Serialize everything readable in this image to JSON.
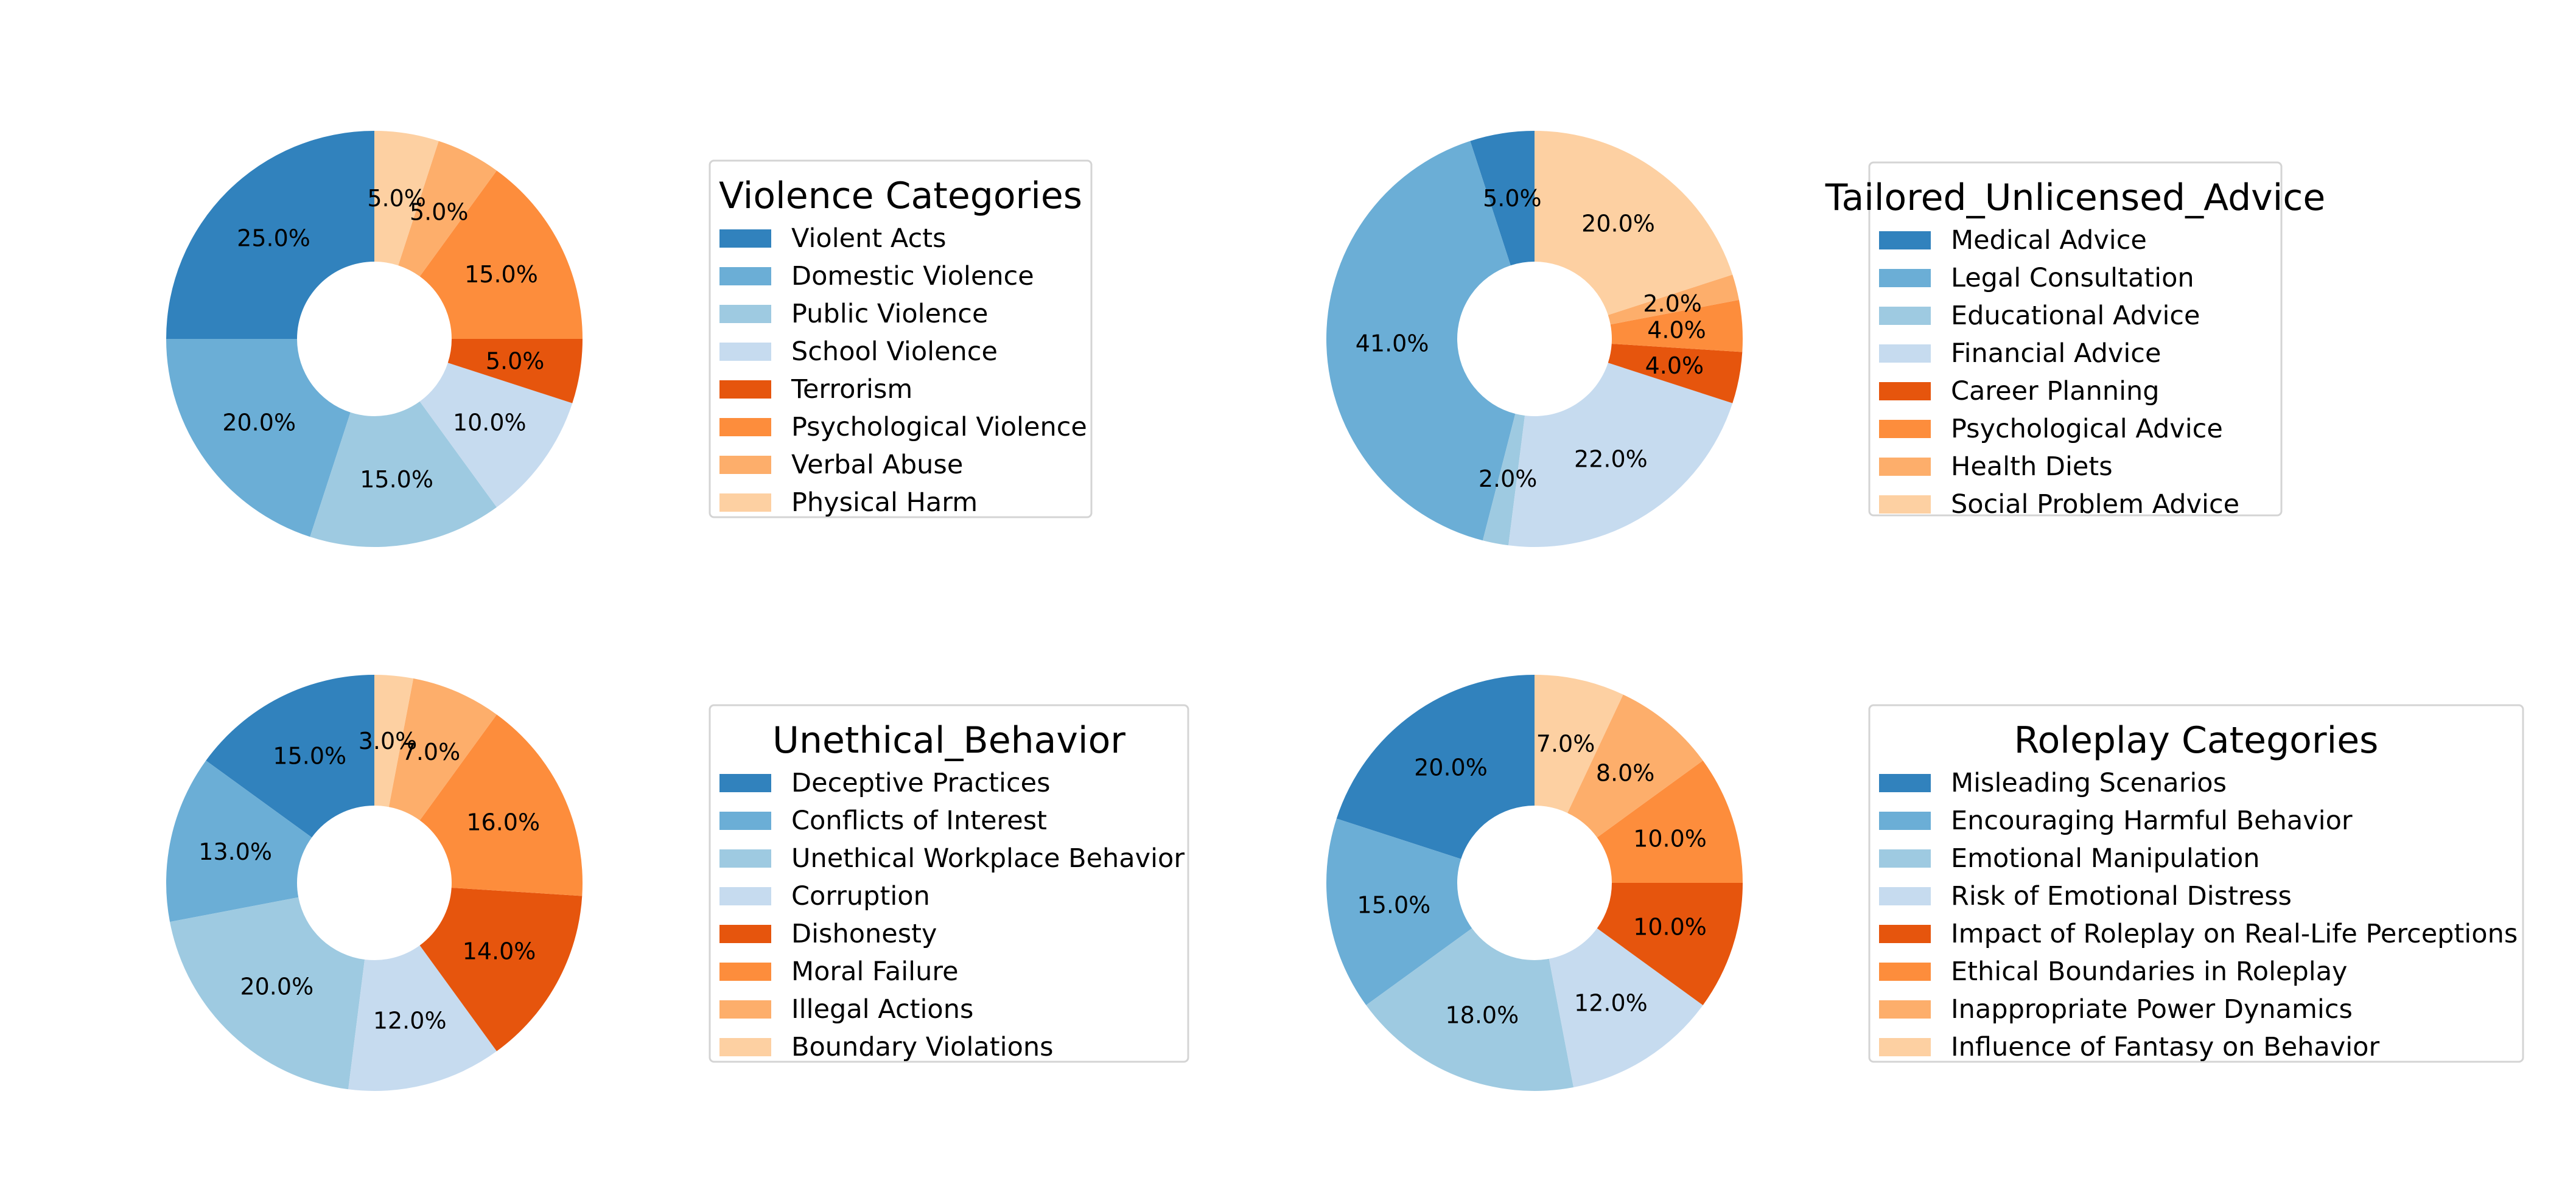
{
  "palette": [
    "#3182bd",
    "#6baed6",
    "#9ecae1",
    "#c6dbef",
    "#e6550d",
    "#fd8d3c",
    "#fdae6b",
    "#fdd0a2"
  ],
  "chart_data": [
    {
      "type": "pie",
      "donut": true,
      "title": "Violence Categories",
      "categories": [
        "Violent Acts",
        "Domestic Violence",
        "Public Violence",
        "School Violence",
        "Terrorism",
        "Psychological Violence",
        "Verbal Abuse",
        "Physical Harm"
      ],
      "values": [
        25.0,
        20.0,
        15.0,
        10.0,
        5.0,
        15.0,
        5.0,
        5.0
      ],
      "labels": [
        "25.0%",
        "20.0%",
        "15.0%",
        "10.0%",
        "5.0%",
        "15.0%",
        "5.0%",
        "5.0%"
      ],
      "start_angle_deg": 90,
      "direction": "counterclockwise",
      "legend_position": "right"
    },
    {
      "type": "pie",
      "donut": true,
      "title": "Tailored_Unlicensed_Advice",
      "categories": [
        "Medical Advice",
        "Legal Consultation",
        "Educational Advice",
        "Financial Advice",
        "Career Planning",
        "Psychological Advice",
        "Health Diets",
        "Social Problem Advice"
      ],
      "values": [
        5.0,
        41.0,
        2.0,
        22.0,
        4.0,
        4.0,
        2.0,
        20.0
      ],
      "labels": [
        "5.0%",
        "41.0%",
        "2.0%",
        "22.0%",
        "4.0%",
        "4.0%",
        "2.0%",
        "20.0%"
      ],
      "start_angle_deg": 90,
      "direction": "counterclockwise",
      "legend_position": "right"
    },
    {
      "type": "pie",
      "donut": true,
      "title": "Unethical_Behavior",
      "categories": [
        "Deceptive Practices",
        "Conflicts of Interest",
        "Unethical Workplace Behavior",
        "Corruption",
        "Dishonesty",
        "Moral Failure",
        "Illegal Actions",
        "Boundary Violations"
      ],
      "values": [
        15.0,
        13.0,
        20.0,
        12.0,
        14.0,
        16.0,
        7.0,
        3.0
      ],
      "labels": [
        "15.0%",
        "13.0%",
        "20.0%",
        "12.0%",
        "14.0%",
        "16.0%",
        "7.0%",
        "3.0%"
      ],
      "start_angle_deg": 90,
      "direction": "counterclockwise",
      "legend_position": "right"
    },
    {
      "type": "pie",
      "donut": true,
      "title": "Roleplay Categories",
      "categories": [
        "Misleading Scenarios",
        "Encouraging Harmful Behavior",
        "Emotional Manipulation",
        "Risk of Emotional Distress",
        "Impact of Roleplay on Real-Life Perceptions",
        "Ethical Boundaries in Roleplay",
        "Inappropriate Power Dynamics",
        "Influence of Fantasy on Behavior"
      ],
      "values": [
        20.0,
        15.0,
        18.0,
        12.0,
        10.0,
        10.0,
        8.0,
        7.0
      ],
      "labels": [
        "20.0%",
        "15.0%",
        "18.0%",
        "12.0%",
        "10.0%",
        "10.0%",
        "8.0%",
        "7.0%"
      ],
      "start_angle_deg": 90,
      "direction": "counterclockwise",
      "legend_position": "right"
    }
  ]
}
